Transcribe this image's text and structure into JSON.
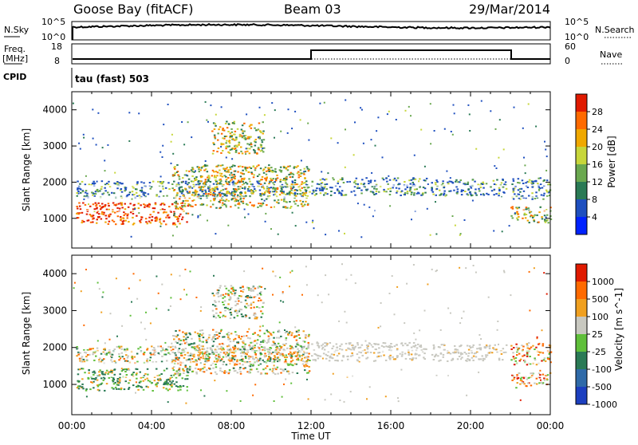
{
  "header": {
    "site": "Goose Bay (fitACF)",
    "beam": "Beam 03",
    "date": "29/Mar/2014"
  },
  "noise_panel": {
    "left_label": "N.Sky",
    "left_top_tick": "10^5",
    "left_bottom_tick": "10^0",
    "right_label": "N.Search",
    "right_top_tick": "10^5",
    "right_bottom_tick": "10^0"
  },
  "freq_panel": {
    "left_label_line1": "Freq.",
    "left_label_line2": "[MHz]",
    "left_ticks": [
      "18",
      "8"
    ],
    "right_label": "Nave",
    "right_ticks": [
      "60",
      "0"
    ],
    "cpid_label": "CPID",
    "cpid_value": "tau (fast) 503"
  },
  "time_axis": {
    "title": "Time UT",
    "ticks": [
      "00:00",
      "04:00",
      "08:00",
      "12:00",
      "16:00",
      "20:00",
      "00:00"
    ]
  },
  "chart_data": [
    {
      "type": "heatmap",
      "title": "",
      "xlabel": "Time UT",
      "ylabel": "Slant Range [km]",
      "x_ticks": [
        "00:00",
        "04:00",
        "08:00",
        "12:00",
        "16:00",
        "20:00",
        "00:00"
      ],
      "x_range_hours": [
        0,
        24
      ],
      "y_ticks": [
        1000,
        2000,
        3000,
        4000
      ],
      "ylim": [
        180,
        4500
      ],
      "colorbar": {
        "label": "Power [dB]",
        "ticks": [
          "4",
          "8",
          "12",
          "16",
          "20",
          "24",
          "28"
        ],
        "colors": [
          "#0022ff",
          "#1e4fbf",
          "#2a7a55",
          "#6aa84f",
          "#c7d63a",
          "#f0a800",
          "#ff6a00",
          "#e01a00"
        ]
      }
    },
    {
      "type": "heatmap",
      "title": "",
      "xlabel": "Time UT",
      "ylabel": "Slant Range [km]",
      "x_ticks": [
        "00:00",
        "04:00",
        "08:00",
        "12:00",
        "16:00",
        "20:00",
        "00:00"
      ],
      "x_range_hours": [
        0,
        24
      ],
      "y_ticks": [
        1000,
        2000,
        3000,
        4000
      ],
      "ylim": [
        180,
        4500
      ],
      "colorbar": {
        "label": "Velocity [m s^-1]",
        "ticks": [
          "1000",
          "500",
          "100",
          "25",
          "-25",
          "-100",
          "-500",
          "-1000"
        ],
        "colors": [
          "#1c3fbf",
          "#2f6aa8",
          "#2a7a55",
          "#5fbf3a",
          "#c8c8c0",
          "#f0a020",
          "#ff6a00",
          "#e01a00"
        ]
      }
    }
  ],
  "bands": {
    "range_bands": [
      {
        "t0": 0.2,
        "t1": 11.9,
        "r0": 1600,
        "r1": 2050,
        "p": "mix"
      },
      {
        "t0": 12.0,
        "t1": 17.8,
        "r0": 1650,
        "r1": 2150,
        "p": "mix"
      },
      {
        "t0": 18.0,
        "t1": 21.8,
        "r0": 1650,
        "r1": 2100,
        "p": "mix"
      },
      {
        "t0": 22.0,
        "t1": 24.0,
        "r0": 1550,
        "r1": 2150,
        "p": "mix"
      },
      {
        "t0": 0.2,
        "t1": 5.8,
        "r0": 850,
        "r1": 1450,
        "p": "strong"
      },
      {
        "t0": 5.0,
        "t1": 11.9,
        "r0": 1300,
        "r1": 2500,
        "p": "mid"
      },
      {
        "t0": 7.0,
        "t1": 9.6,
        "r0": 2800,
        "r1": 3700,
        "p": "mid"
      },
      {
        "t0": 22.0,
        "t1": 24.0,
        "r0": 900,
        "r1": 1350,
        "p": "mid"
      }
    ]
  }
}
